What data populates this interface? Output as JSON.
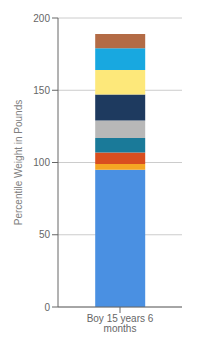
{
  "chart_data": {
    "type": "bar",
    "stacked": true,
    "categories": [
      "Boy 15 years 6 months"
    ],
    "series": [
      {
        "color": "#4a90e2",
        "values": [
          95
        ]
      },
      {
        "color": "#f5a623",
        "values": [
          4
        ]
      },
      {
        "color": "#d94e1f",
        "values": [
          8
        ]
      },
      {
        "color": "#1a7a99",
        "values": [
          10
        ]
      },
      {
        "color": "#b8b8b8",
        "values": [
          12
        ]
      },
      {
        "color": "#1e3a5f",
        "values": [
          18
        ]
      },
      {
        "color": "#fde87a",
        "values": [
          17
        ]
      },
      {
        "color": "#18a8e0",
        "values": [
          15
        ]
      },
      {
        "color": "#b36b45",
        "values": [
          10
        ]
      }
    ],
    "ylabel": "Percentile Weight in Pounds",
    "ylim": [
      0,
      200
    ],
    "yticks": [
      0,
      50,
      100,
      150,
      200
    ],
    "grid": true
  }
}
